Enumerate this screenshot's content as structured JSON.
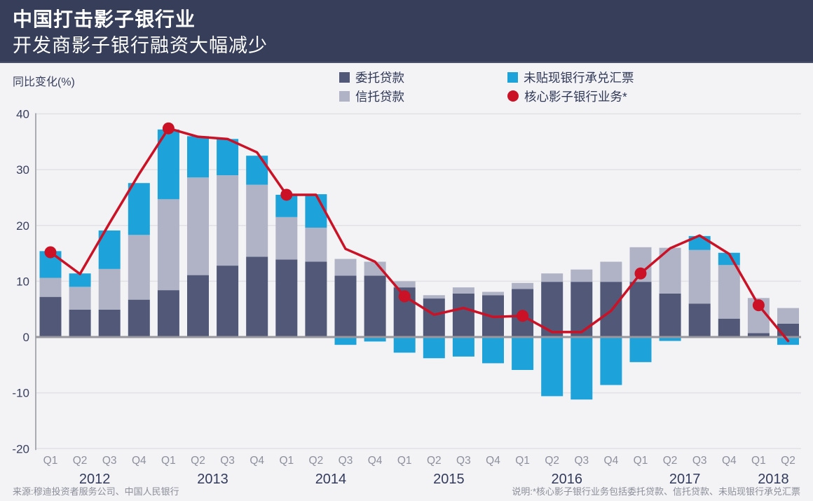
{
  "header": {
    "title": "中国打击影子银行业",
    "subtitle": "开发商影子银行融资大幅减少"
  },
  "footer": {
    "source": "来源:穆迪投资者服务公司、中国人民银行",
    "note": "说明:*核心影子银行业务包括委托贷款、信托贷款、未贴现银行承兑汇票"
  },
  "colors": {
    "header_bg": "#363E5A",
    "page_bg": "#F3F3F5",
    "entrusted_bar": "#515878",
    "trust_bar": "#AFB3C5",
    "undiscounted_bar": "#1DA2DA",
    "core_line": "#CB1125",
    "gridline": "#E2E2E6",
    "zero_line": "#97979D",
    "axis_line": "#ABABB2",
    "tick_text": "#3A4160",
    "quarter_text": "#8D909D",
    "year_text": "#333B5C"
  },
  "chart_data": {
    "type": "bar",
    "subtype": "stacked-bars-with-line",
    "title": "中国打击影子银行业 — 开发商影子银行融资大幅减少",
    "ylabel": "同比变化(%)",
    "xlabel": "",
    "ylim": [
      -20,
      40
    ],
    "yticks": [
      40,
      30,
      20,
      10,
      0,
      -10,
      -20
    ],
    "grid": "horizontal",
    "legend_position": "top",
    "categories": [
      "Q1",
      "Q2",
      "Q3",
      "Q4",
      "Q1",
      "Q2",
      "Q3",
      "Q4",
      "Q1",
      "Q2",
      "Q3",
      "Q4",
      "Q1",
      "Q2",
      "Q3",
      "Q4",
      "Q1",
      "Q2",
      "Q3",
      "Q4",
      "Q1",
      "Q2",
      "Q3",
      "Q4",
      "Q1",
      "Q2"
    ],
    "year_groups": [
      {
        "label": "2012",
        "quarters": 4
      },
      {
        "label": "2013",
        "quarters": 4
      },
      {
        "label": "2014",
        "quarters": 4
      },
      {
        "label": "2015",
        "quarters": 4
      },
      {
        "label": "2016",
        "quarters": 4
      },
      {
        "label": "2017",
        "quarters": 4
      },
      {
        "label": "2018",
        "quarters": 2
      }
    ],
    "series": [
      {
        "name": "委托贷款",
        "kind": "stacked-bar",
        "color": "#515878",
        "values": [
          7.2,
          4.9,
          4.9,
          6.7,
          8.4,
          11.1,
          12.8,
          14.4,
          13.9,
          13.5,
          11.0,
          11.0,
          8.9,
          6.9,
          7.8,
          7.5,
          8.6,
          9.9,
          9.9,
          9.9,
          9.9,
          7.8,
          6.0,
          3.3,
          0.7,
          2.4
        ]
      },
      {
        "name": "信托贷款",
        "kind": "stacked-bar",
        "color": "#AFB3C5",
        "values": [
          3.4,
          4.1,
          7.3,
          11.6,
          16.3,
          17.5,
          16.2,
          12.9,
          7.6,
          6.1,
          3.0,
          2.5,
          1.1,
          0.6,
          1.1,
          0.6,
          1.1,
          1.5,
          2.2,
          3.6,
          6.2,
          8.2,
          9.6,
          9.6,
          6.3,
          2.8
        ]
      },
      {
        "name": "未贴现银行承兑汇票",
        "kind": "stacked-bar",
        "color": "#1DA2DA",
        "values": [
          4.8,
          2.4,
          6.9,
          9.3,
          12.5,
          7.4,
          6.5,
          5.2,
          4.0,
          6.0,
          -1.4,
          -0.8,
          -2.8,
          -3.8,
          -3.5,
          -4.7,
          -5.9,
          -10.6,
          -11.2,
          -8.6,
          -4.5,
          -0.7,
          2.5,
          2.2,
          0,
          -1.4
        ]
      },
      {
        "name": "核心影子银行业务*",
        "kind": "line",
        "color": "#CB1125",
        "markers": "every-Q1",
        "values": [
          15.2,
          11.3,
          20.4,
          29.2,
          37.4,
          35.9,
          35.5,
          33.1,
          25.5,
          25.5,
          15.8,
          13.5,
          7.3,
          4.0,
          5.2,
          3.6,
          3.8,
          0.9,
          0.9,
          4.7,
          11.4,
          15.9,
          18.2,
          14.9,
          5.7,
          -0.7
        ]
      }
    ]
  }
}
